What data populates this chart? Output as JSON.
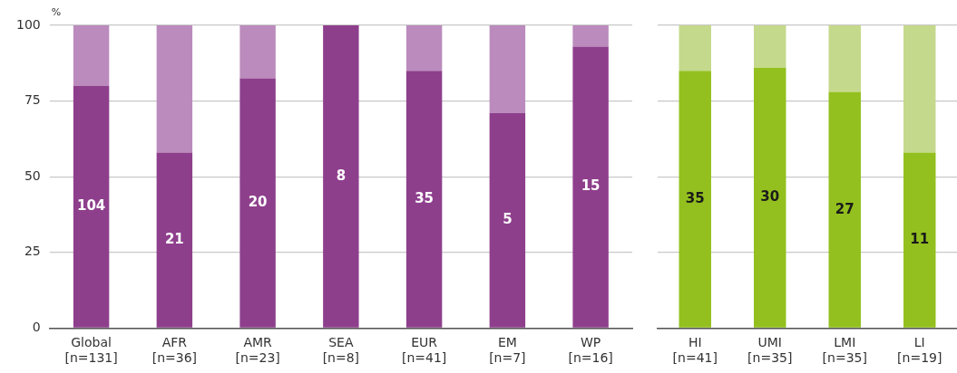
{
  "chart_data": [
    {
      "type": "bar",
      "stacked": true,
      "ylabel": "%",
      "categories": [
        "Global\n[n=131]",
        "AFR\n[n=36]",
        "AMR\n[n=23]",
        "SEA\n[n=8]",
        "EUR\n[n=41]",
        "EM\n[n=7]",
        "WP\n[n=16]"
      ],
      "series": [
        {
          "color": "#8e3f8c",
          "values": [
            80,
            58,
            82.5,
            100,
            85,
            71,
            93
          ]
        },
        {
          "color": "#bb8bbd",
          "values": [
            20,
            42,
            17.5,
            0,
            15,
            29,
            7
          ]
        }
      ],
      "annotations": [
        "104",
        "21",
        "20",
        "8",
        "35",
        "5",
        "15"
      ],
      "ylim": [
        0,
        100
      ],
      "yticks": [
        0,
        25,
        50,
        75,
        100
      ],
      "grid": "y",
      "legend": false
    },
    {
      "type": "bar",
      "stacked": true,
      "categories": [
        "HI\n[n=41]",
        "UMI\n[n=35]",
        "LMI\n[n=35]",
        "LI\n[n=19]"
      ],
      "series": [
        {
          "color": "#93c01f",
          "values": [
            85,
            86,
            78,
            58
          ]
        },
        {
          "color": "#c5d98c",
          "values": [
            15,
            14,
            22,
            42
          ]
        }
      ],
      "annotations": [
        "35",
        "30",
        "27",
        "11"
      ],
      "ylim": [
        0,
        100
      ],
      "yticks": [
        0,
        25,
        50,
        75,
        100
      ],
      "grid": "y",
      "legend": false,
      "tick_labels": "x"
    }
  ]
}
